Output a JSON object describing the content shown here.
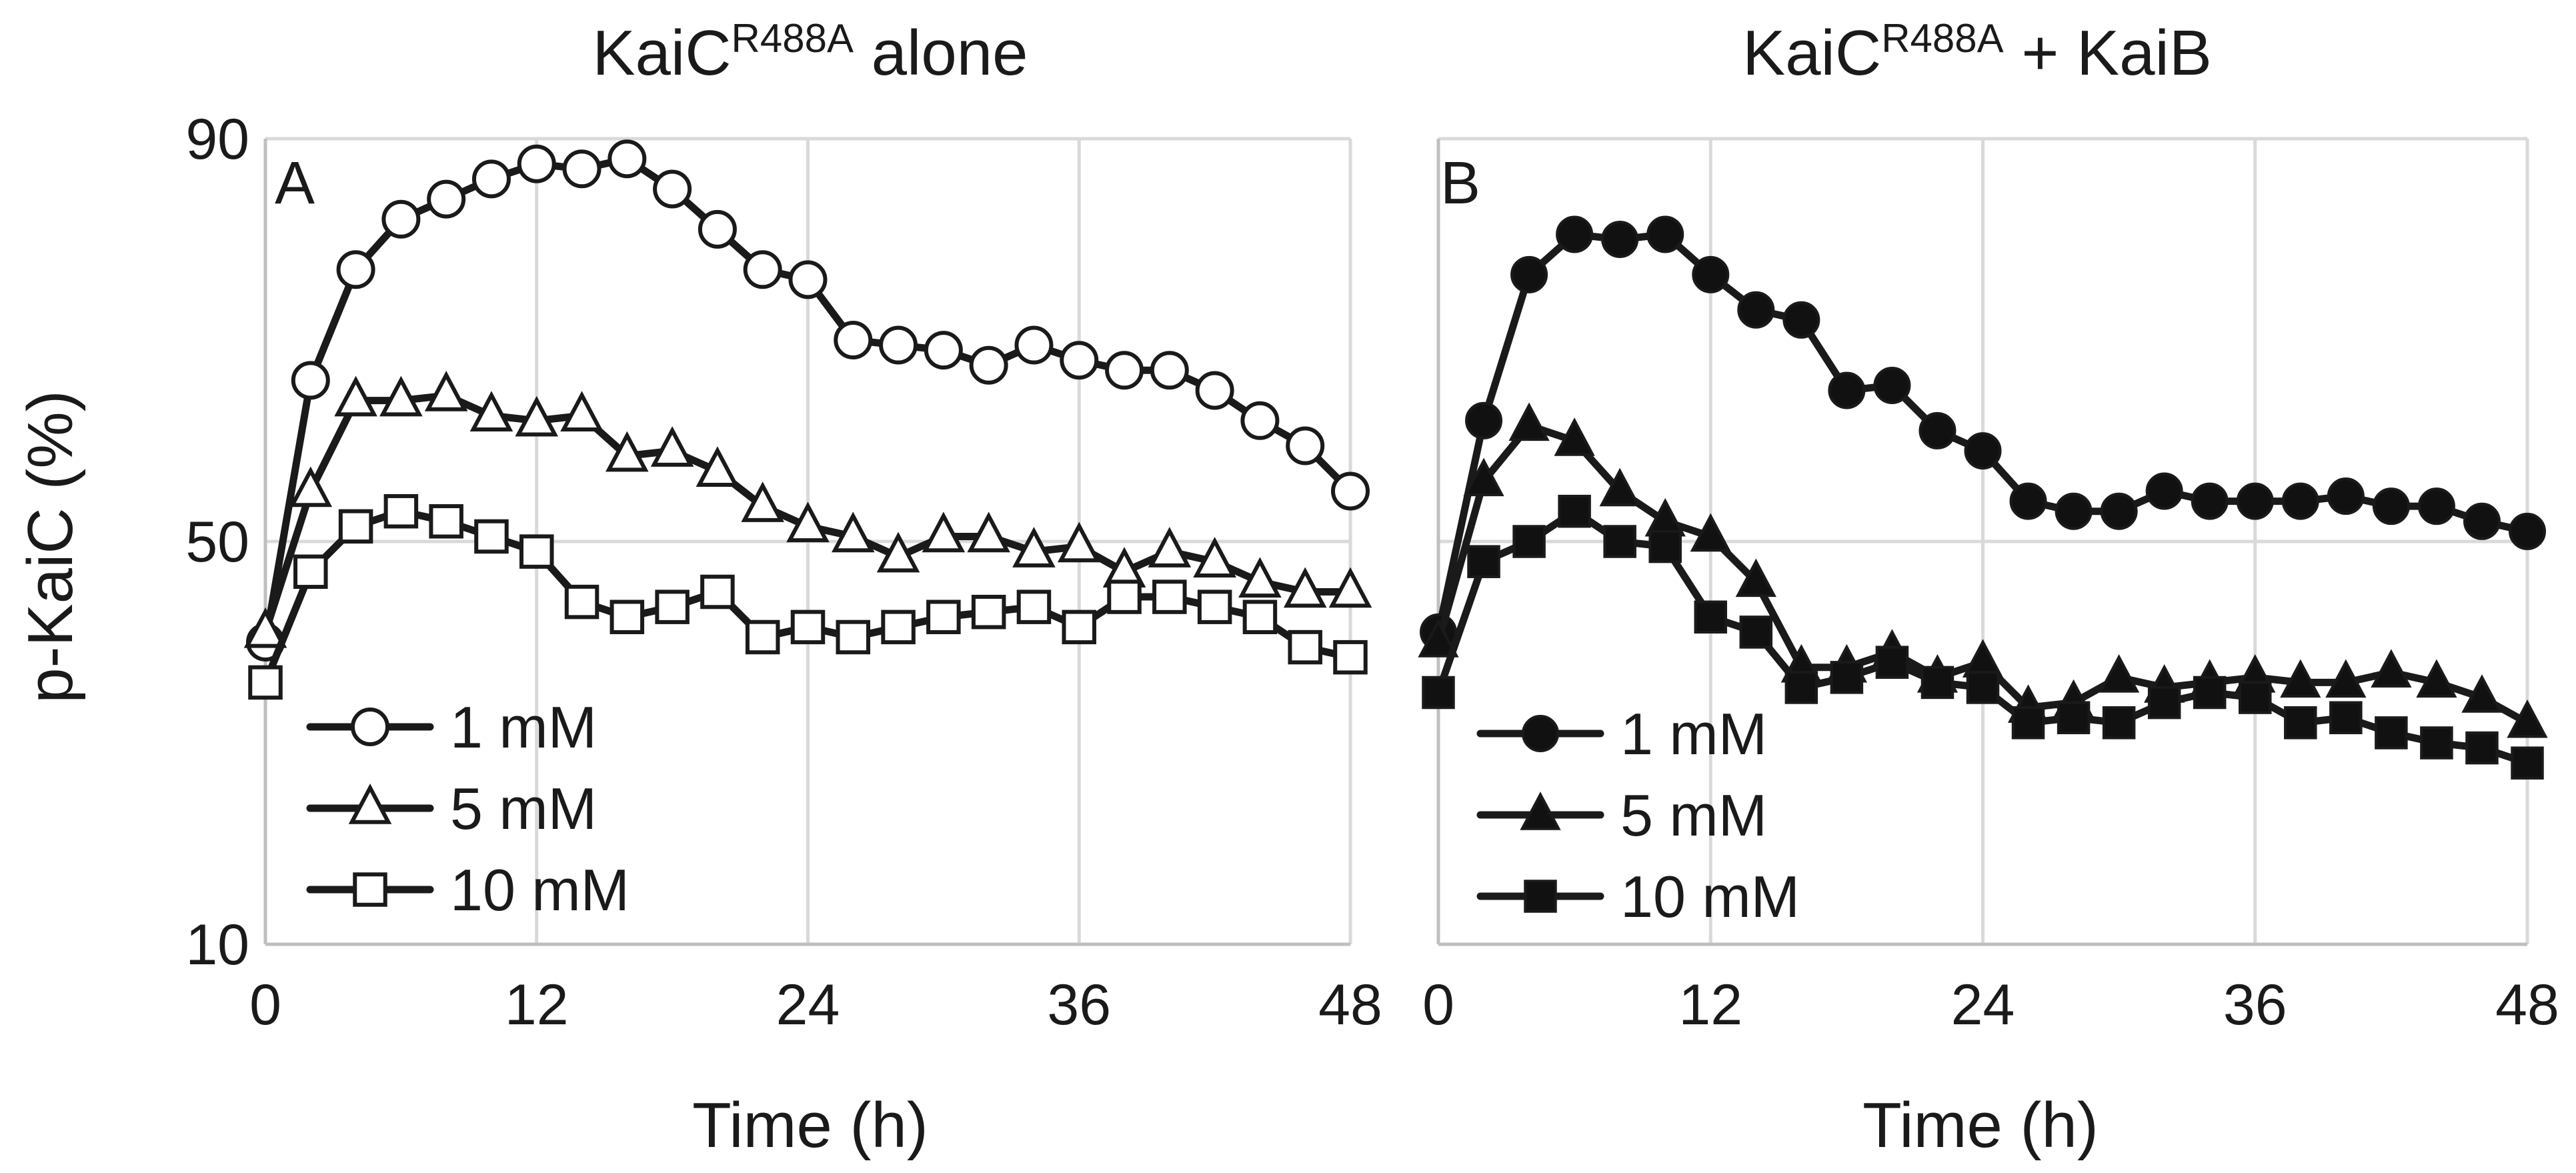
{
  "chart_data": [
    {
      "type": "line",
      "panel_label": "A",
      "title": {
        "main": "KaiC",
        "sup": "R488A",
        "rest": " alone"
      },
      "xlabel": "Time (h)",
      "ylabel": "p-KaiC (%)",
      "xlim": [
        0,
        48
      ],
      "ylim": [
        10,
        90
      ],
      "xticks": [
        "0",
        "12",
        "24",
        "36",
        "48"
      ],
      "yticks": [
        "10",
        "50",
        "90"
      ],
      "grid": true,
      "legend_position": "bottom-left",
      "marker_fill": "open",
      "x": [
        0,
        2,
        4,
        6,
        8,
        10,
        12,
        14,
        16,
        18,
        20,
        22,
        24,
        26,
        28,
        30,
        32,
        34,
        36,
        38,
        40,
        42,
        44,
        46,
        48
      ],
      "series": [
        {
          "name": "1 mM",
          "marker": "circle",
          "values": [
            40,
            66,
            77,
            82,
            84,
            86,
            87.5,
            87,
            88,
            85,
            81,
            77,
            76,
            70,
            69.5,
            69,
            67.5,
            69.5,
            68,
            67,
            67,
            65,
            62,
            59.5,
            55
          ]
        },
        {
          "name": "5 mM",
          "marker": "triangle",
          "values": [
            41,
            55,
            64,
            64,
            64.5,
            62.5,
            62,
            62.5,
            58.5,
            59,
            57,
            53.5,
            51.5,
            50.5,
            48.5,
            50.5,
            50.5,
            49,
            49.5,
            47,
            49,
            48,
            46,
            45,
            45
          ]
        },
        {
          "name": "10 mM",
          "marker": "square",
          "values": [
            36,
            47,
            51.5,
            53,
            52,
            50.5,
            49,
            44,
            42.5,
            43.5,
            45,
            40.5,
            41.5,
            40.5,
            41.5,
            42.5,
            43,
            43.5,
            41.5,
            44.5,
            44.5,
            43.5,
            42.5,
            39.5,
            38.5
          ]
        }
      ]
    },
    {
      "type": "line",
      "panel_label": "B",
      "title": {
        "main": "KaiC",
        "sup": "R488A",
        "rest": " + KaiB"
      },
      "xlabel": "Time (h)",
      "ylabel": "p-KaiC (%)",
      "xlim": [
        0,
        48
      ],
      "ylim": [
        10,
        90
      ],
      "xticks": [
        "0",
        "12",
        "24",
        "36",
        "48"
      ],
      "yticks": [
        "10",
        "50",
        "90"
      ],
      "grid": true,
      "legend_position": "bottom-left",
      "marker_fill": "solid",
      "x": [
        0,
        2,
        4,
        6,
        8,
        10,
        12,
        14,
        16,
        18,
        20,
        22,
        24,
        26,
        28,
        30,
        32,
        34,
        36,
        38,
        40,
        42,
        44,
        46,
        48
      ],
      "series": [
        {
          "name": "1 mM",
          "marker": "circle",
          "values": [
            41,
            62,
            76.5,
            80.5,
            80,
            80.5,
            76.5,
            73,
            72,
            65,
            65.5,
            61,
            59,
            54,
            53,
            53,
            55,
            54,
            54,
            54,
            54.5,
            53.5,
            53.5,
            52,
            51
          ]
        },
        {
          "name": "5 mM",
          "marker": "triangle",
          "values": [
            40,
            56,
            61.5,
            60,
            55,
            52,
            50.5,
            46,
            37.5,
            37.5,
            39,
            36.5,
            38,
            33.5,
            34,
            36.5,
            35.5,
            36,
            36.5,
            36,
            36,
            37,
            36,
            34.5,
            32
          ]
        },
        {
          "name": "10 mM",
          "marker": "square",
          "values": [
            35,
            48,
            50,
            53,
            50,
            49.5,
            42.5,
            41,
            35.5,
            36.5,
            38,
            36,
            35.5,
            32,
            32.5,
            32,
            34,
            35,
            34.5,
            32,
            32.5,
            31,
            30,
            29.5,
            28
          ]
        }
      ]
    }
  ]
}
